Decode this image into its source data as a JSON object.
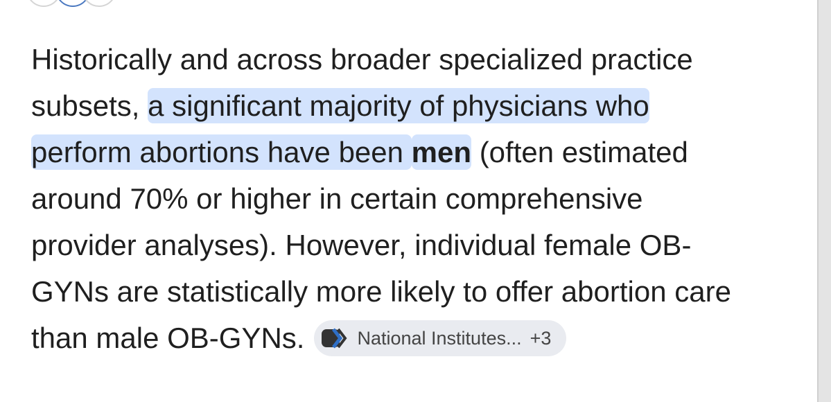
{
  "paragraph": {
    "lines": [
      [
        {
          "text": "Historically and across broader specialized practice",
          "highlight": false
        }
      ],
      [
        {
          "text": "subsets, ",
          "highlight": false
        },
        {
          "text": "a significant majority of physicians who",
          "highlight": true
        }
      ],
      [
        {
          "text": "perform abortions have been ",
          "highlight": true
        },
        {
          "text": "men",
          "highlight": true,
          "bold": true
        },
        {
          "text": " (often estimated",
          "highlight": false
        }
      ],
      [
        {
          "text": "around 70% or higher in certain comprehensive",
          "highlight": false
        }
      ],
      [
        {
          "text": "provider analyses). However, individual female OB-",
          "highlight": false
        }
      ],
      [
        {
          "text": "GYNs are statistically more likely to offer abortion care",
          "highlight": false
        }
      ],
      [
        {
          "text": "than male OB-GYNs.",
          "highlight": false
        }
      ]
    ]
  },
  "source_chip": {
    "label": "National Institutes...",
    "count": "+3"
  }
}
